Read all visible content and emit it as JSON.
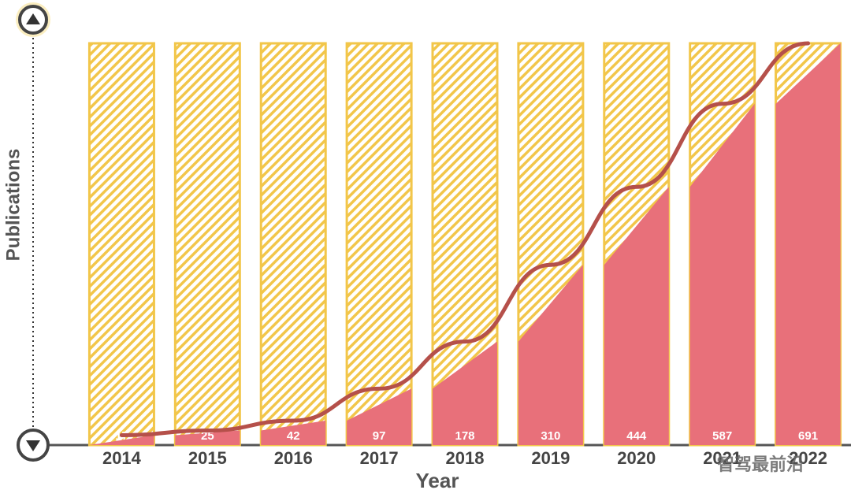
{
  "chart_data": {
    "type": "bar",
    "categories": [
      "2014",
      "2015",
      "2016",
      "2017",
      "2018",
      "2019",
      "2020",
      "2021",
      "2022"
    ],
    "values": [
      17,
      25,
      42,
      97,
      178,
      310,
      444,
      587,
      691
    ],
    "color": "#e8707a",
    "hatch_color": "#f2c64a",
    "line_color": "#b5504a",
    "xlabel": "Year",
    "ylabel": "Publications",
    "ylim": [
      0,
      691
    ],
    "watermark": "智驾最前沿"
  }
}
